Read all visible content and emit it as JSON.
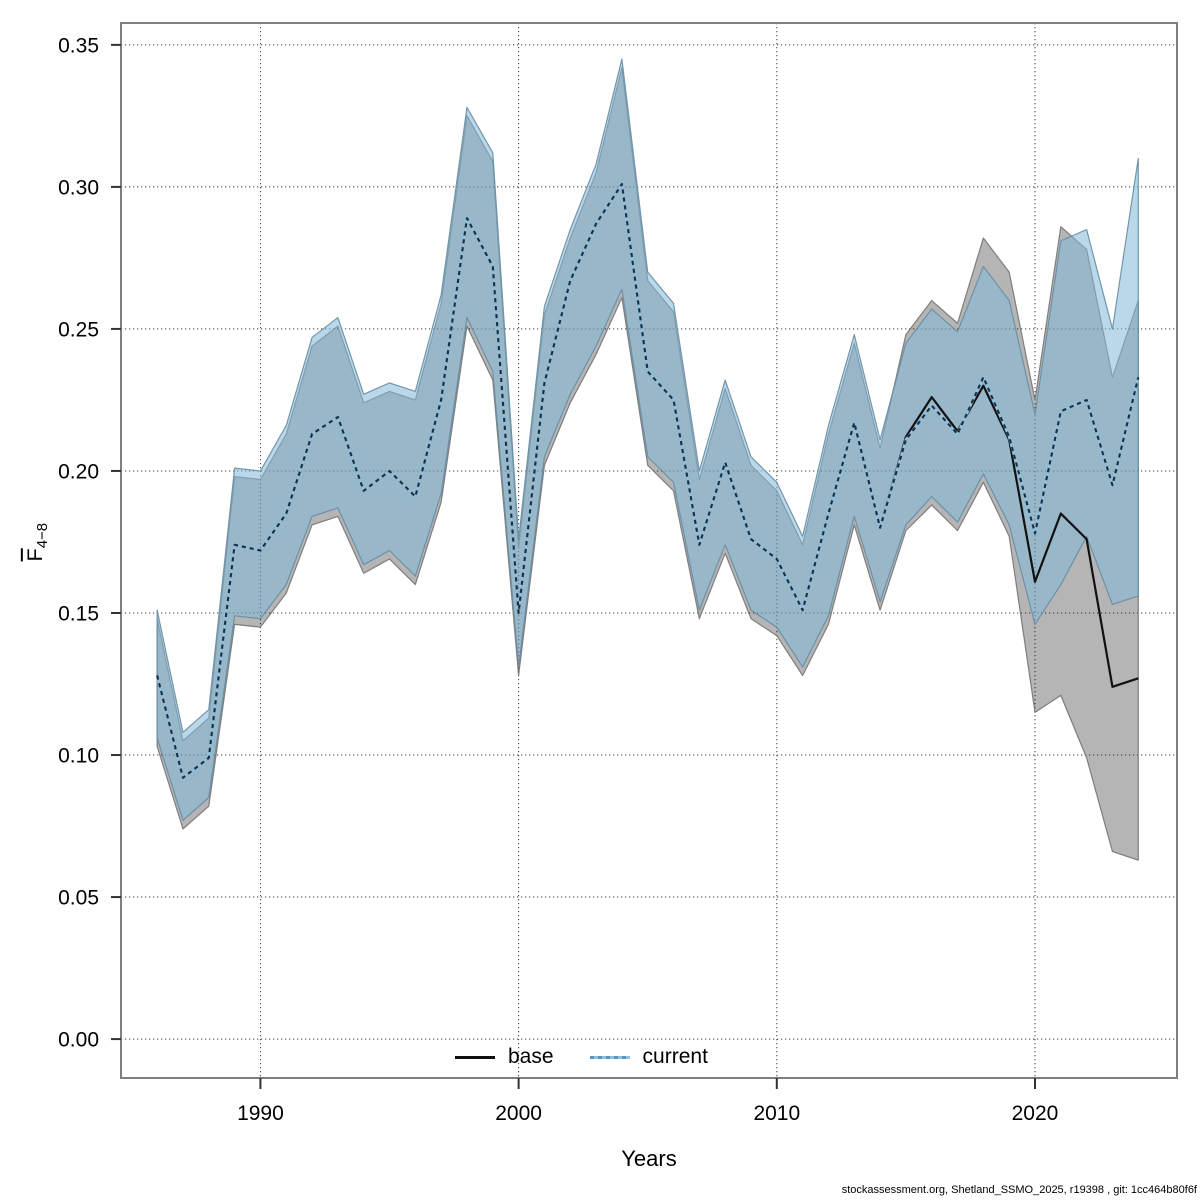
{
  "figure": {
    "footer": "stockassessment.org, Shetland_SSMO_2025, r19398 , git: 1cc464b80f6f",
    "background_color": "#ffffff",
    "frame_color": "#7f7f7f"
  },
  "chart_data": {
    "type": "line",
    "title": "",
    "xlabel": "Years",
    "ylabel_main": "F",
    "ylabel_sub": "4−8",
    "xlim": [
      1984.6,
      2025.5
    ],
    "ylim": [
      -0.0137,
      0.3577
    ],
    "grid": "dotted",
    "x_ticks": {
      "values": [
        1990,
        2000,
        2010,
        2020
      ],
      "labels": [
        "1990",
        "2000",
        "2010",
        "2020"
      ]
    },
    "y_ticks": {
      "values": [
        0.0,
        0.05,
        0.1,
        0.15,
        0.2,
        0.25,
        0.3,
        0.35
      ],
      "labels": [
        "0.00",
        "0.05",
        "0.10",
        "0.15",
        "0.20",
        "0.25",
        "0.30",
        "0.35"
      ]
    },
    "legend": {
      "position": "bottom-center-inside",
      "entries": [
        {
          "label": "base",
          "style": "solid"
        },
        {
          "label": "current",
          "style": "dotted"
        }
      ]
    },
    "x": [
      1986,
      1987,
      1988,
      1989,
      1990,
      1991,
      1992,
      1993,
      1994,
      1995,
      1996,
      1997,
      1998,
      1999,
      2000,
      2001,
      2002,
      2003,
      2004,
      2005,
      2006,
      2007,
      2008,
      2009,
      2010,
      2011,
      2012,
      2013,
      2014,
      2015,
      2016,
      2017,
      2018,
      2019,
      2020,
      2021,
      2022,
      2023,
      2024
    ],
    "series": [
      {
        "name": "base",
        "line_style": "solid",
        "line_color": "#111111",
        "band_fill": "rgba(0,0,0,0.29)",
        "band_stroke": "rgba(110,110,110,0.85)",
        "values": [
          0.128,
          0.092,
          0.099,
          0.174,
          0.172,
          0.185,
          0.213,
          0.219,
          0.193,
          0.2,
          0.191,
          0.225,
          0.289,
          0.272,
          0.15,
          0.231,
          0.267,
          0.287,
          0.301,
          0.235,
          0.225,
          0.174,
          0.203,
          0.176,
          0.169,
          0.151,
          0.185,
          0.217,
          0.18,
          0.212,
          0.226,
          0.214,
          0.23,
          0.211,
          0.161,
          0.185,
          0.176,
          0.124,
          0.127
        ],
        "lo": [
          0.103,
          0.074,
          0.082,
          0.146,
          0.145,
          0.157,
          0.181,
          0.184,
          0.164,
          0.169,
          0.16,
          0.189,
          0.251,
          0.232,
          0.128,
          0.202,
          0.224,
          0.241,
          0.261,
          0.202,
          0.193,
          0.148,
          0.171,
          0.148,
          0.142,
          0.128,
          0.146,
          0.181,
          0.151,
          0.179,
          0.188,
          0.179,
          0.196,
          0.177,
          0.115,
          0.121,
          0.099,
          0.066,
          0.063
        ],
        "hi": [
          0.148,
          0.105,
          0.113,
          0.198,
          0.197,
          0.213,
          0.244,
          0.251,
          0.224,
          0.228,
          0.225,
          0.259,
          0.325,
          0.309,
          0.173,
          0.255,
          0.282,
          0.305,
          0.342,
          0.267,
          0.256,
          0.197,
          0.229,
          0.202,
          0.193,
          0.174,
          0.213,
          0.245,
          0.208,
          0.248,
          0.26,
          0.252,
          0.282,
          0.27,
          0.225,
          0.286,
          0.278,
          0.233,
          0.26
        ]
      },
      {
        "name": "current",
        "line_style": "dotted",
        "line_color": "#1c2e40",
        "underlay_color": "#8fc0de",
        "legend_dash_color": "#5c94ba",
        "band_fill": "rgba(127,185,217,0.55)",
        "band_stroke": "rgba(104,140,163,0.9)",
        "values": [
          0.128,
          0.092,
          0.099,
          0.174,
          0.172,
          0.185,
          0.213,
          0.219,
          0.193,
          0.2,
          0.191,
          0.225,
          0.289,
          0.272,
          0.15,
          0.231,
          0.267,
          0.287,
          0.301,
          0.235,
          0.225,
          0.174,
          0.203,
          0.176,
          0.169,
          0.151,
          0.185,
          0.217,
          0.18,
          0.211,
          0.223,
          0.213,
          0.233,
          0.212,
          0.178,
          0.221,
          0.225,
          0.195,
          0.233
        ],
        "lo": [
          0.106,
          0.077,
          0.085,
          0.149,
          0.148,
          0.16,
          0.184,
          0.187,
          0.167,
          0.172,
          0.163,
          0.192,
          0.254,
          0.235,
          0.131,
          0.205,
          0.227,
          0.244,
          0.264,
          0.205,
          0.196,
          0.151,
          0.174,
          0.151,
          0.145,
          0.131,
          0.149,
          0.184,
          0.154,
          0.181,
          0.191,
          0.182,
          0.199,
          0.181,
          0.146,
          0.16,
          0.177,
          0.153,
          0.156
        ],
        "hi": [
          0.151,
          0.108,
          0.116,
          0.201,
          0.2,
          0.216,
          0.247,
          0.254,
          0.227,
          0.231,
          0.228,
          0.262,
          0.328,
          0.312,
          0.176,
          0.258,
          0.285,
          0.308,
          0.345,
          0.27,
          0.259,
          0.2,
          0.232,
          0.205,
          0.196,
          0.177,
          0.216,
          0.248,
          0.211,
          0.245,
          0.257,
          0.249,
          0.272,
          0.26,
          0.22,
          0.281,
          0.285,
          0.25,
          0.31
        ]
      }
    ]
  }
}
